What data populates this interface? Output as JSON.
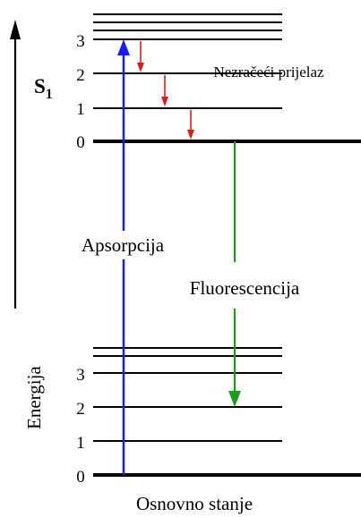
{
  "excited_state": {
    "label_main": "S",
    "label_sub": "1",
    "levels": [
      "3",
      "2",
      "1",
      "0"
    ]
  },
  "ground_state": {
    "levels": [
      "3",
      "2",
      "1",
      "0"
    ],
    "label": "Osnovno stanje"
  },
  "axis": {
    "label": "Energija"
  },
  "transitions": {
    "absorption": "Apsorpcija",
    "fluorescence": "Fluorescencija",
    "nonradiative": "Nezračeći prijelaz"
  },
  "colors": {
    "absorption": "#1a1aff",
    "fluorescence": "#1a9e1a",
    "nonradiative": "#e01a1a",
    "levels": "#000000"
  }
}
